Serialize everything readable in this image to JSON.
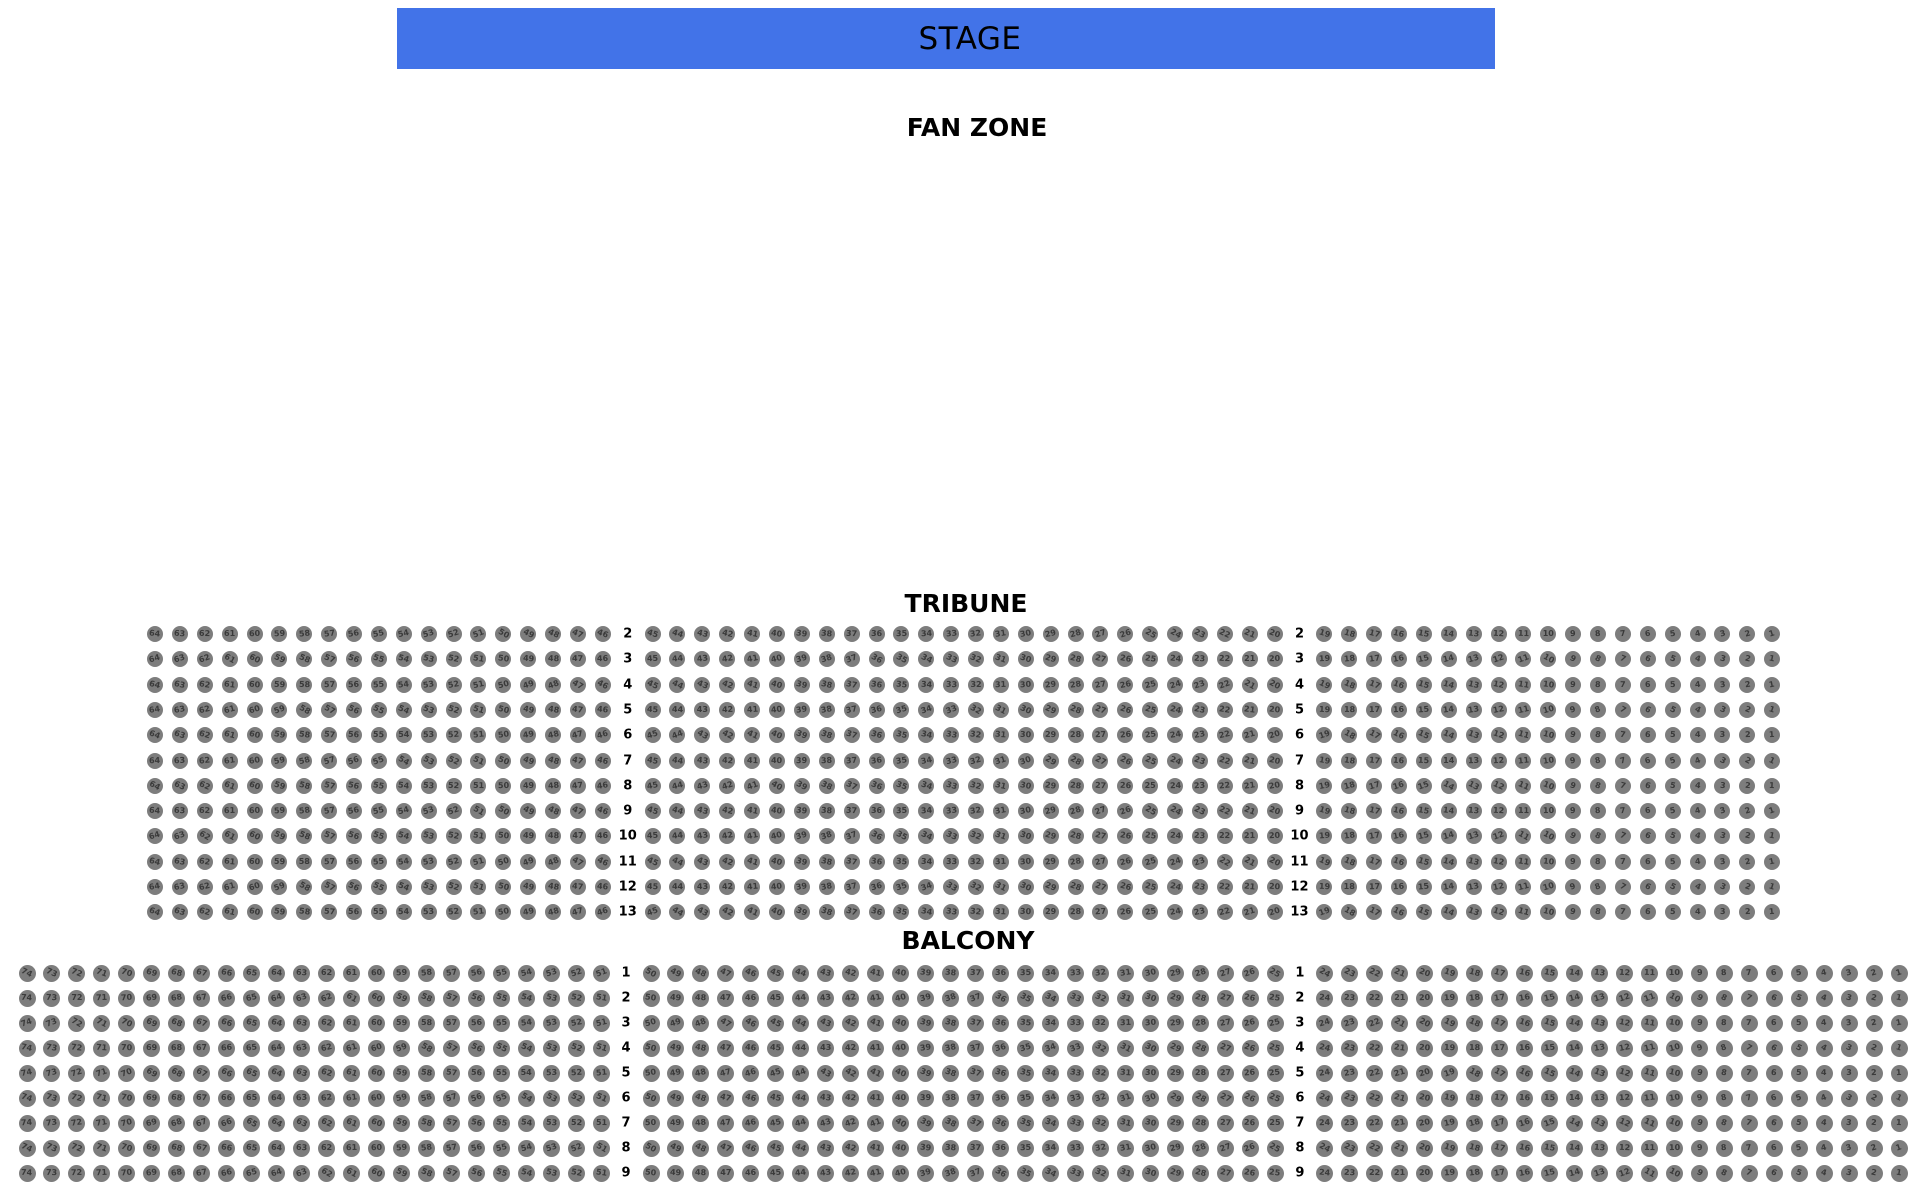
{
  "stage": {
    "label": "STAGE",
    "color": "#4273e8"
  },
  "fan_zone": {
    "label": "FAN ZONE"
  },
  "seat_style": {
    "fill": "#7d7d7d",
    "number_color": "#3a3a3a"
  },
  "sections": [
    {
      "id": "tribune",
      "title": "TRIBUNE",
      "row_labels": [
        "2",
        "3",
        "4",
        "5",
        "6",
        "7",
        "8",
        "9",
        "10",
        "11",
        "12",
        "13"
      ],
      "blocks": [
        {
          "from": 64,
          "to": 46
        },
        {
          "from": 45,
          "to": 20
        },
        {
          "from": 19,
          "to": 1
        }
      ]
    },
    {
      "id": "balcony",
      "title": "BALCONY",
      "row_labels": [
        "1",
        "2",
        "3",
        "4",
        "5",
        "6",
        "7",
        "8",
        "9"
      ],
      "blocks": [
        {
          "from": 74,
          "to": 51
        },
        {
          "from": 50,
          "to": 25
        },
        {
          "from": 24,
          "to": 1
        }
      ]
    }
  ]
}
